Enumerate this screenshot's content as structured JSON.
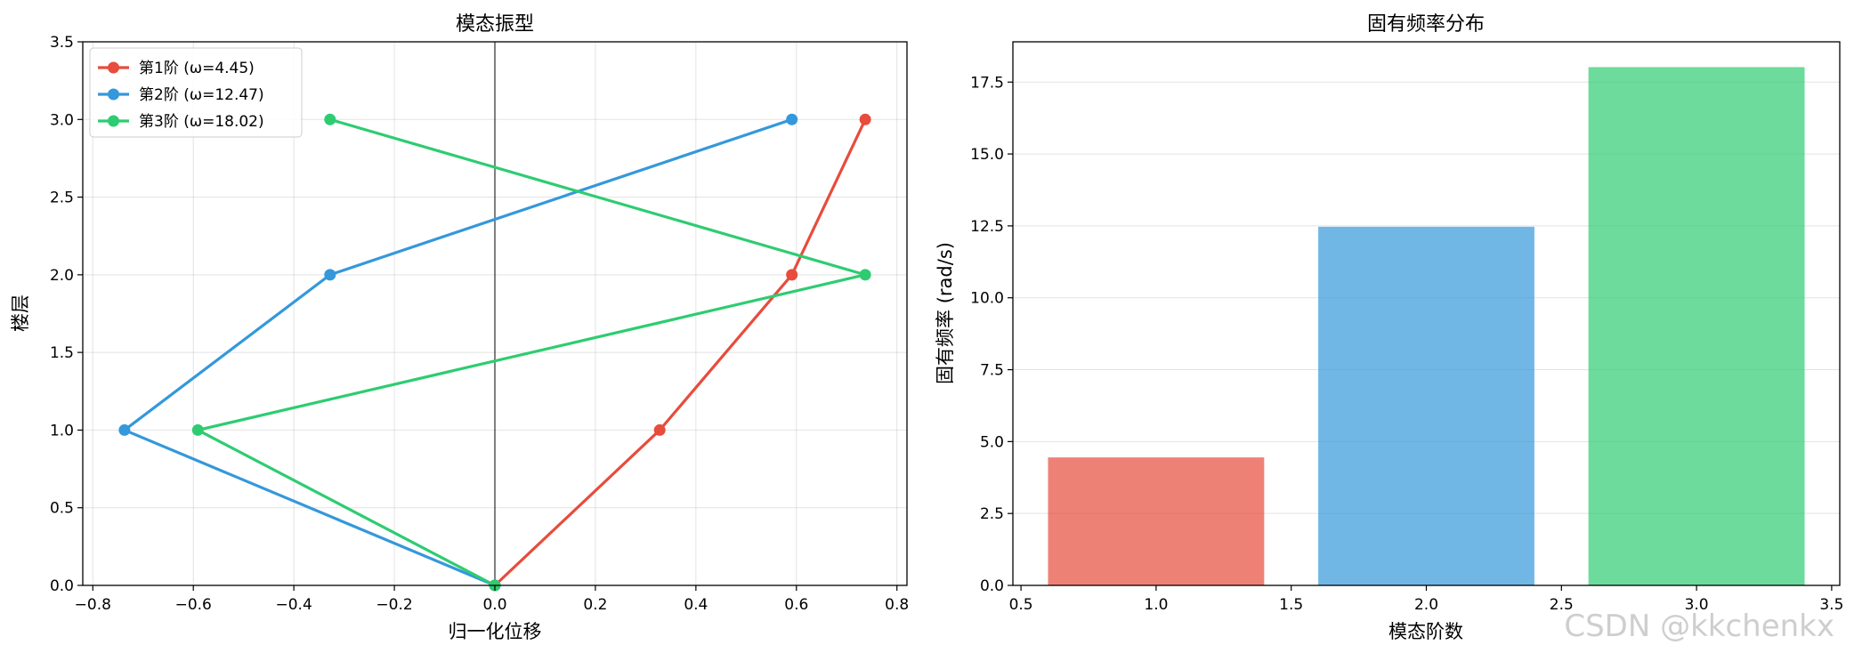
{
  "chart_data": [
    {
      "type": "line",
      "title": "模态振型",
      "xlabel": "归一化位移",
      "ylabel": "楼层",
      "xlim": [
        -0.82,
        0.82
      ],
      "ylim": [
        0,
        3.5
      ],
      "xticks": [
        "−0.8",
        "−0.6",
        "−0.4",
        "−0.2",
        "0.0",
        "0.2",
        "0.4",
        "0.6",
        "0.8"
      ],
      "yticks": [
        "0.0",
        "0.5",
        "1.0",
        "1.5",
        "2.0",
        "2.5",
        "3.0",
        "3.5"
      ],
      "grid": true,
      "legend_position": "upper-left",
      "series": [
        {
          "name": "第1阶 (ω=4.45)",
          "color": "#e74c3c",
          "x": [
            0.0,
            0.328,
            0.591,
            0.737
          ],
          "y": [
            0,
            1,
            2,
            3
          ]
        },
        {
          "name": "第2阶 (ω=12.47)",
          "color": "#3498db",
          "x": [
            0.0,
            -0.737,
            -0.328,
            0.591
          ],
          "y": [
            0,
            1,
            2,
            3
          ]
        },
        {
          "name": "第3阶 (ω=18.02)",
          "color": "#2ecc71",
          "x": [
            0.0,
            -0.591,
            0.737,
            -0.328
          ],
          "y": [
            0,
            1,
            2,
            3
          ]
        }
      ]
    },
    {
      "type": "bar",
      "title": "固有频率分布",
      "xlabel": "模态阶数",
      "ylabel": "固有频率 (rad/s)",
      "xlim": [
        0.47,
        3.53
      ],
      "ylim": [
        0,
        18.9
      ],
      "xticks": [
        "0.5",
        "1.0",
        "1.5",
        "2.0",
        "2.5",
        "3.0",
        "3.5"
      ],
      "yticks": [
        "0.0",
        "2.5",
        "5.0",
        "7.5",
        "10.0",
        "12.5",
        "15.0",
        "17.5"
      ],
      "grid": true,
      "x": [
        1,
        2,
        3
      ],
      "values": [
        4.45,
        12.47,
        18.02
      ],
      "colors": [
        "#e74c3c",
        "#3498db",
        "#2ecc71"
      ]
    }
  ],
  "watermark": "CSDN @kkchenkx"
}
